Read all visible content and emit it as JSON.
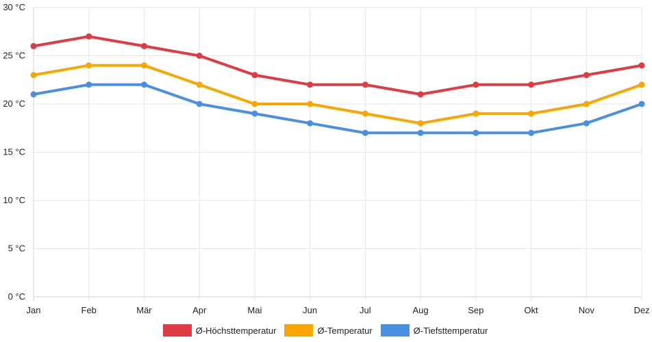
{
  "chart_data": {
    "type": "line",
    "categories": [
      "Jan",
      "Feb",
      "Mär",
      "Apr",
      "Mai",
      "Jun",
      "Jul",
      "Aug",
      "Sep",
      "Okt",
      "Nov",
      "Dez"
    ],
    "series": [
      {
        "name": "Ø-Höchsttemperatur",
        "color": "#e03a45",
        "values": [
          26,
          27,
          26,
          25,
          23,
          22,
          22,
          21,
          22,
          22,
          23,
          24
        ]
      },
      {
        "name": "Ø-Temperatur",
        "color": "#f9a602",
        "values": [
          23,
          24,
          24,
          22,
          20,
          20,
          19,
          18,
          19,
          19,
          20,
          22
        ]
      },
      {
        "name": "Ø-Tiefsttemperatur",
        "color": "#4a90e2",
        "values": [
          21,
          22,
          22,
          20,
          19,
          18,
          17,
          17,
          17,
          17,
          18,
          20
        ]
      }
    ],
    "y_ticks": [
      "0 °C",
      "5 °C",
      "10 °C",
      "15 °C",
      "20 °C",
      "25 °C",
      "30 °C"
    ],
    "ylim": [
      0,
      30
    ],
    "grid": true,
    "legend_position": "bottom-center"
  }
}
